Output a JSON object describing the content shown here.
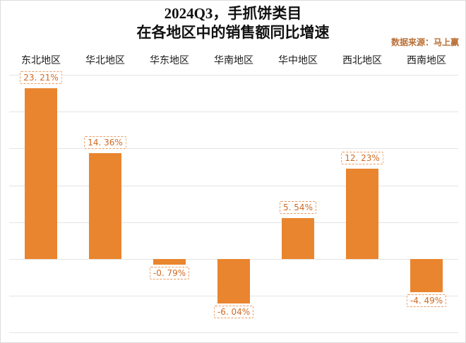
{
  "page": {
    "title_line1": "2024Q3，手抓饼类目",
    "title_line2": "在各地区中的销售额同比增速",
    "source_note": "数据来源：马上赢"
  },
  "colors": {
    "bar": "#E9852F",
    "value_label_text": "#CF6B27",
    "value_label_border": "#EC9A5F",
    "gridline": "#E4E4E4",
    "source_text": "#B96F35",
    "title_text": "#111111"
  },
  "chart_data": {
    "type": "bar",
    "title": "2024Q3，手抓饼类目 在各地区中的销售额同比增速",
    "source": "数据来源：马上赢",
    "categories": [
      "东北地区",
      "华北地区",
      "华东地区",
      "华南地区",
      "华中地区",
      "西北地区",
      "西南地区"
    ],
    "values": [
      23.21,
      14.36,
      -0.79,
      -6.04,
      5.54,
      12.23,
      -4.49
    ],
    "value_labels": [
      "23. 21%",
      "14. 36%",
      "-0. 79%",
      "-6. 04%",
      "5. 54%",
      "12. 23%",
      "-4. 49%"
    ],
    "unit": "%",
    "xlabel": "",
    "ylabel": "",
    "ylim": [
      -10,
      25
    ],
    "grid_step": 5,
    "grid": "on",
    "legend": "none",
    "bar_color": "#E9852F"
  }
}
